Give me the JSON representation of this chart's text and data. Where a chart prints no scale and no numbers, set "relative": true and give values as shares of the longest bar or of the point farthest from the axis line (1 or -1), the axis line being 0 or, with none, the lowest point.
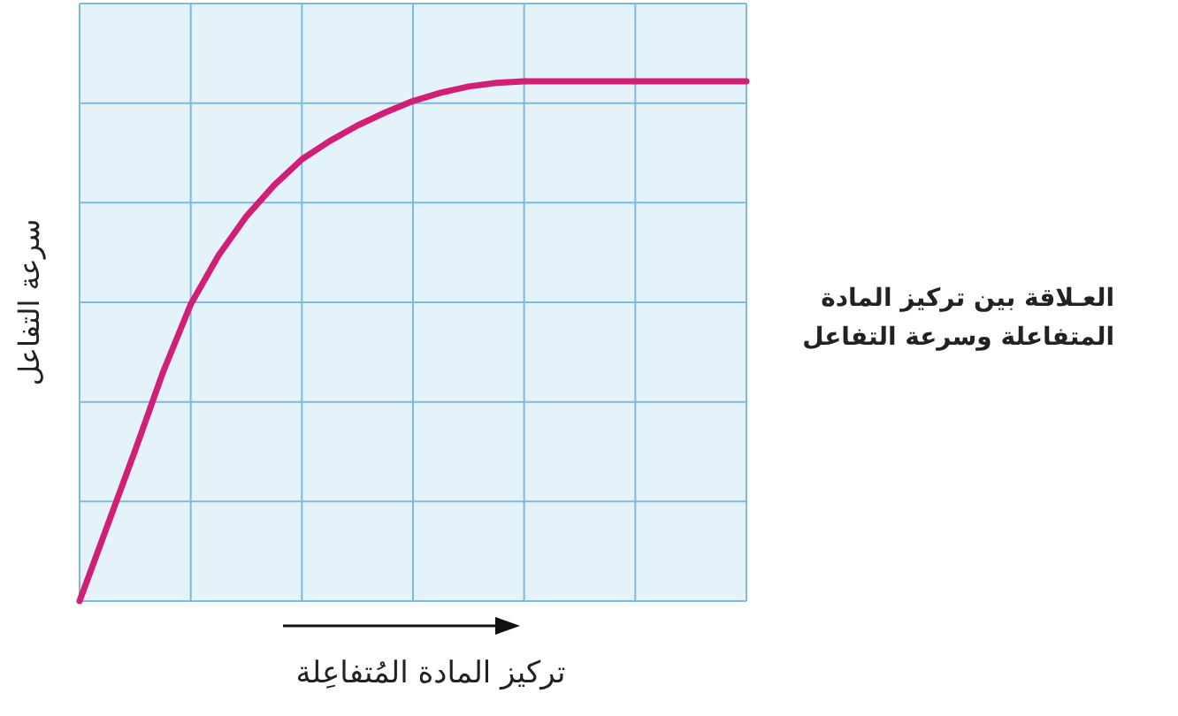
{
  "chart_data": {
    "type": "line",
    "relative": true,
    "title": "العـلاقة بين تركيز المادة المتفاعلة وسرعة التفاعل",
    "xlabel": "تركيز المادة المُتفاعِلة",
    "ylabel": "سرعة التفاعل",
    "grid": true,
    "marker": "none",
    "line_style": "solid",
    "categories": [
      null,
      null,
      null,
      null,
      null,
      null,
      null,
      null,
      null,
      null,
      null,
      null,
      null,
      null,
      null,
      null,
      null,
      null,
      null,
      null,
      null,
      null,
      null,
      null,
      null
    ],
    "series": [
      {
        "color": "#d11f78",
        "values": [
          0,
          0.145,
          0.29,
          0.44,
          0.571,
          0.665,
          0.74,
          0.8,
          0.85,
          0.885,
          0.915,
          0.94,
          0.962,
          0.978,
          0.99,
          0.997,
          1,
          1,
          1,
          1,
          1,
          1,
          1,
          1,
          1
        ]
      }
    ]
  }
}
